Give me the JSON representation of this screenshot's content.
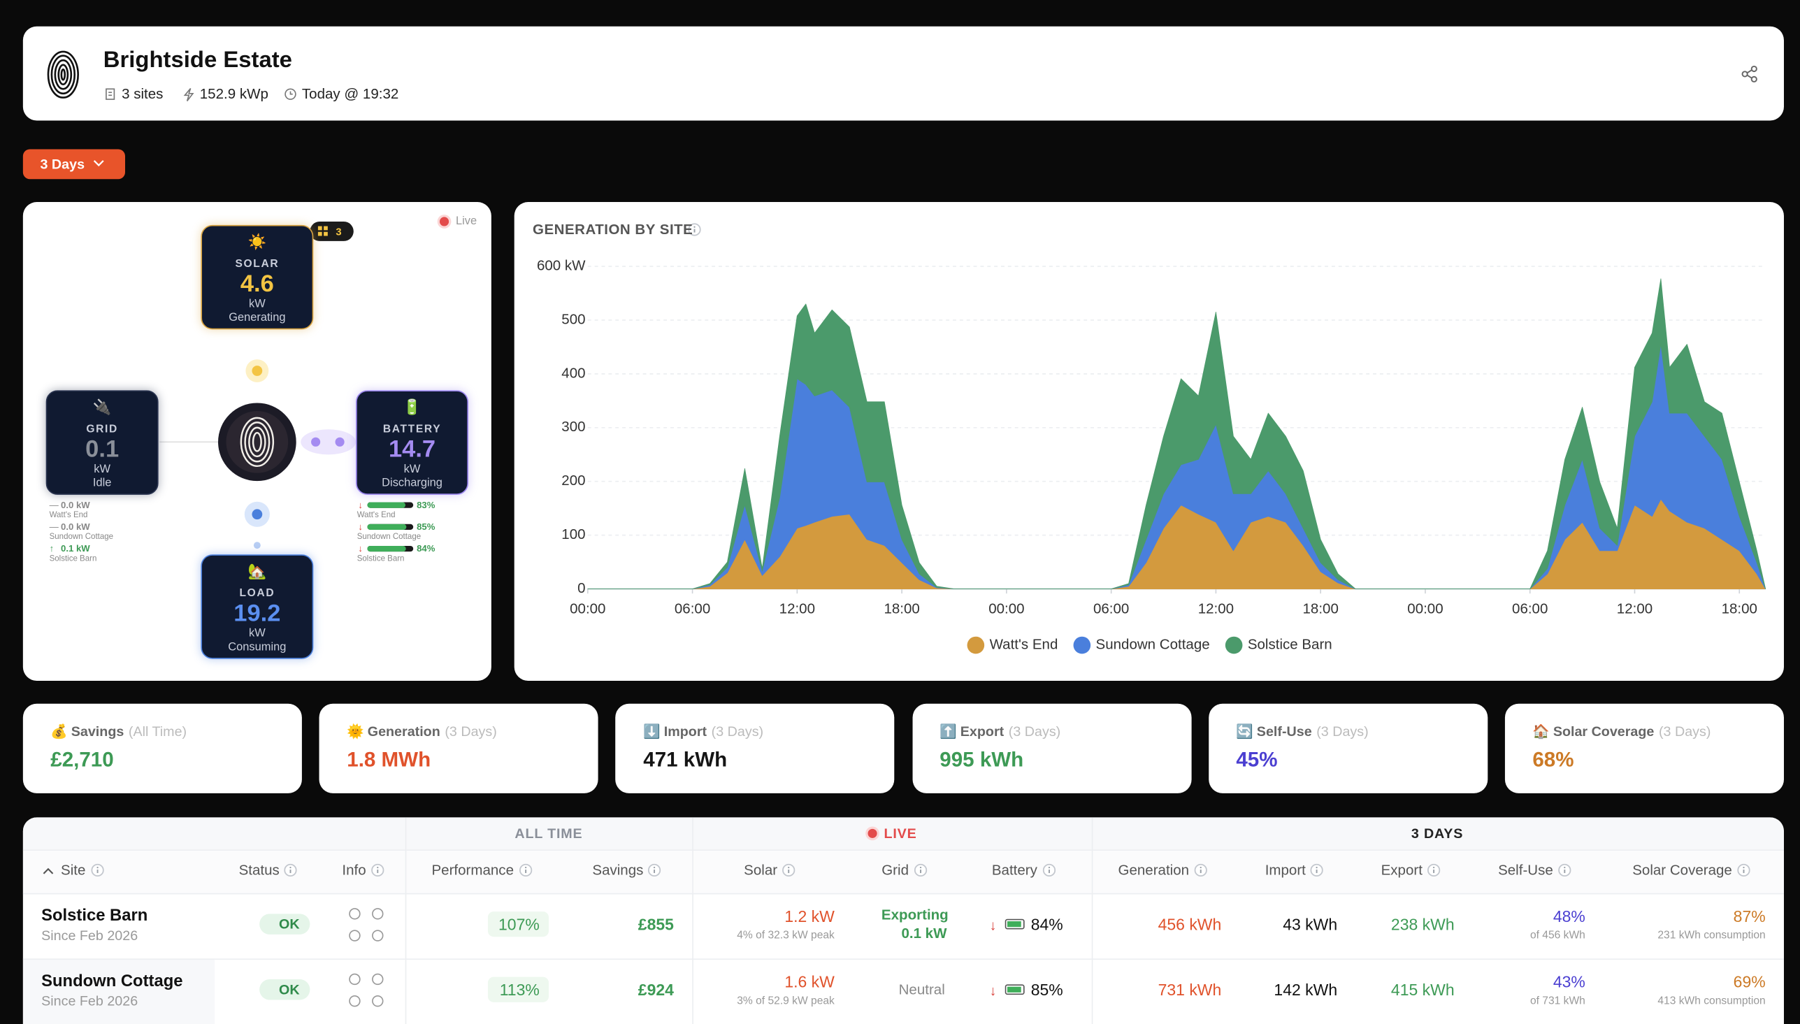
{
  "header": {
    "title": "Brightside Estate",
    "sites": "3 sites",
    "capacity": "152.9 kWp",
    "updated": "Today @ 19:32"
  },
  "controls": {
    "range": "3 Days"
  },
  "flow": {
    "live": "Live",
    "site_count": "3",
    "solar": {
      "icon": "☀️",
      "label": "SOLAR",
      "value": "4.6",
      "unit": "kW",
      "status": "Generating"
    },
    "grid": {
      "icon": "🔌",
      "label": "GRID",
      "value": "0.1",
      "unit": "kW",
      "status": "Idle"
    },
    "battery": {
      "icon": "🔋",
      "label": "BATTERY",
      "value": "14.7",
      "unit": "kW",
      "status": "Discharging"
    },
    "load": {
      "icon": "🏡",
      "label": "LOAD",
      "value": "19.2",
      "unit": "kW",
      "status": "Consuming"
    },
    "grid_sites": [
      {
        "arrow": "—",
        "value": "0.0 kW",
        "name": "Watt's End"
      },
      {
        "arrow": "—",
        "value": "0.0 kW",
        "name": "Sundown Cottage"
      },
      {
        "arrow": "↑",
        "value": "0.1 kW",
        "name": "Solstice Barn"
      }
    ],
    "battery_sites": [
      {
        "arrow": "↓",
        "charge": {
          "value": 83,
          "label": "83%"
        },
        "name": "Watt's End"
      },
      {
        "arrow": "↓",
        "charge": {
          "value": 85,
          "label": "85%"
        },
        "name": "Sundown Cottage"
      },
      {
        "arrow": "↓",
        "charge": {
          "value": 84,
          "label": "84%"
        },
        "name": "Solstice Barn"
      }
    ]
  },
  "chart_data": {
    "type": "area",
    "stacked": true,
    "title": "GENERATION BY SITE",
    "x": [
      0,
      6,
      7,
      8,
      9,
      10,
      11,
      12,
      12.5,
      13,
      14,
      15,
      16,
      17,
      18,
      19,
      20,
      21,
      30,
      31,
      32,
      33,
      34,
      35,
      36,
      37,
      38,
      39,
      40,
      41,
      42,
      43,
      44,
      54,
      55,
      56,
      57,
      58,
      59,
      60,
      61,
      61.5,
      62,
      63,
      64,
      65,
      66,
      67,
      67.5
    ],
    "series": [
      {
        "name": "Watt's End",
        "color": "#d39a3e",
        "values": [
          0,
          0,
          5,
          30,
          92,
          25,
          60,
          113,
          118,
          124,
          135,
          139,
          92,
          81,
          49,
          17,
          2,
          0,
          0,
          5,
          49,
          113,
          156,
          139,
          124,
          71,
          124,
          135,
          124,
          81,
          32,
          11,
          0,
          0,
          28,
          92,
          124,
          71,
          71,
          156,
          135,
          167,
          145,
          124,
          113,
          92,
          71,
          28,
          0
        ]
      },
      {
        "name": "Sundown Cottage",
        "color": "#4a7fdc",
        "values": [
          0,
          0,
          3,
          10,
          64,
          8,
          110,
          278,
          262,
          235,
          235,
          199,
          107,
          118,
          43,
          11,
          1,
          0,
          0,
          3,
          43,
          64,
          75,
          102,
          182,
          106,
          53,
          85,
          53,
          32,
          17,
          6,
          0,
          0,
          10,
          64,
          117,
          42,
          10,
          128,
          213,
          288,
          182,
          203,
          171,
          149,
          64,
          21,
          0
        ]
      },
      {
        "name": "Solstice Barn",
        "color": "#4b9a6b",
        "values": [
          0,
          0,
          2,
          10,
          68,
          5,
          114,
          117,
          150,
          117,
          149,
          149,
          149,
          149,
          64,
          21,
          2,
          0,
          0,
          2,
          64,
          107,
          160,
          118,
          209,
          107,
          64,
          107,
          107,
          107,
          43,
          11,
          0,
          0,
          33,
          85,
          97,
          86,
          32,
          128,
          128,
          122,
          85,
          128,
          64,
          86,
          64,
          22,
          0
        ]
      }
    ],
    "xlim": [
      0,
      67.5
    ],
    "xticks": [
      {
        "value": 0,
        "label": "00:00"
      },
      {
        "value": 6,
        "label": "06:00"
      },
      {
        "value": 12,
        "label": "12:00"
      },
      {
        "value": 18,
        "label": "18:00"
      },
      {
        "value": 24,
        "label": "00:00"
      },
      {
        "value": 30,
        "label": "06:00"
      },
      {
        "value": 36,
        "label": "12:00"
      },
      {
        "value": 42,
        "label": "18:00"
      },
      {
        "value": 48,
        "label": "00:00"
      },
      {
        "value": 54,
        "label": "06:00"
      },
      {
        "value": 60,
        "label": "12:00"
      },
      {
        "value": 66,
        "label": "18:00"
      }
    ],
    "ylim": [
      0,
      600
    ],
    "yticks": [
      0,
      100,
      200,
      300,
      400,
      500,
      {
        "value": 600,
        "label": "600 kW"
      }
    ],
    "grid": true,
    "legend": "bottom"
  },
  "kpis": [
    {
      "icon": "💰",
      "label": "Savings",
      "period": "(All Time)",
      "value": "£2,710",
      "color": "#3d9a55"
    },
    {
      "icon": "🌞",
      "label": "Generation",
      "period": "(3 Days)",
      "value": "1.8 MWh",
      "color": "#e0522b"
    },
    {
      "icon": "⬇️",
      "label": "Import",
      "period": "(3 Days)",
      "value": "471 kWh",
      "color": "#151515"
    },
    {
      "icon": "⬆️",
      "label": "Export",
      "period": "(3 Days)",
      "value": "995 kWh",
      "color": "#3d9a55"
    },
    {
      "icon": "🔄",
      "label": "Self-Use",
      "period": "(3 Days)",
      "value": "45%",
      "color": "#4b3fd1"
    },
    {
      "icon": "🏠",
      "label": "Solar Coverage",
      "period": "(3 Days)",
      "value": "68%",
      "color": "#cc7a26"
    }
  ],
  "table": {
    "groups": [
      "ALL TIME",
      "LIVE",
      "3 DAYS"
    ],
    "columns": [
      "Site",
      "Status",
      "Info",
      "Performance",
      "Savings",
      "Solar",
      "Grid",
      "Battery",
      "Generation",
      "Import",
      "Export",
      "Self-Use",
      "Solar Coverage"
    ],
    "rows": [
      {
        "site": "Solstice Barn",
        "since": "Since Feb 2026",
        "status": "OK",
        "performance": "107%",
        "savings": "£855",
        "solar": "1.2 kW",
        "solar_note": "4% of 32.3 kW peak",
        "grid": "Exporting",
        "grid_value": "0.1 kW",
        "battery_arrow": "↓",
        "battery": "84%",
        "generation": "456 kWh",
        "import": "43 kWh",
        "export": "238 kWh",
        "self_use": "48%",
        "self_use_note": "of 456 kWh",
        "coverage": "87%",
        "coverage_note": "231 kWh consumption"
      },
      {
        "site": "Sundown Cottage",
        "since": "Since Feb 2026",
        "status": "OK",
        "performance": "113%",
        "savings": "£924",
        "solar": "1.6 kW",
        "solar_note": "3% of 52.9 kW peak",
        "grid": "Neutral",
        "battery_arrow": "↓",
        "battery": "85%",
        "generation": "731 kWh",
        "import": "142 kWh",
        "export": "415 kWh",
        "self_use": "43%",
        "self_use_note": "of 731 kWh",
        "coverage": "69%",
        "coverage_note": "413 kWh consumption"
      }
    ]
  }
}
